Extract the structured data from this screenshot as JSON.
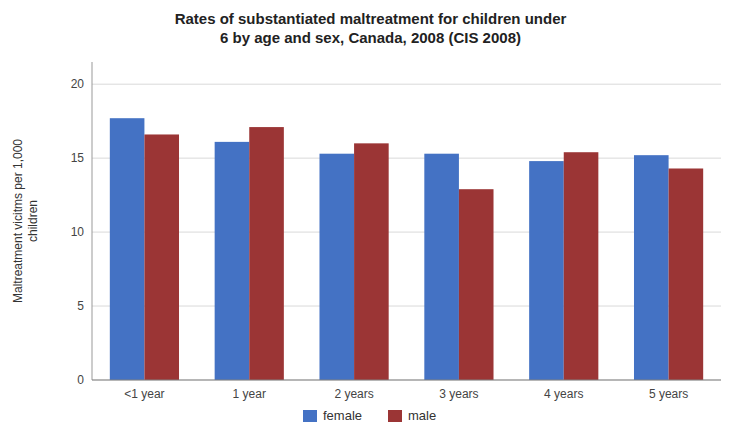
{
  "chart_data": {
    "type": "bar",
    "title": "Rates of substantiated maltreatment for children under\n6 by age and sex, Canada, 2008 (CIS 2008)",
    "y_label": "Maltreatment vicitms per 1,000\nchildren",
    "categories": [
      "<1 year",
      "1 year",
      "2 years",
      "3 years",
      "4 years",
      "5 years"
    ],
    "series": [
      {
        "name": "female",
        "color": "#4472C4",
        "values": [
          17.7,
          16.1,
          15.3,
          15.3,
          14.8,
          15.2
        ]
      },
      {
        "name": "male",
        "color": "#9B3535",
        "values": [
          16.6,
          17.1,
          16.0,
          12.9,
          15.4,
          14.3
        ]
      }
    ],
    "ylim": [
      0,
      21.5
    ],
    "yticks": [
      0,
      5,
      10,
      15,
      20
    ],
    "grid": true,
    "legend": "bottom"
  }
}
